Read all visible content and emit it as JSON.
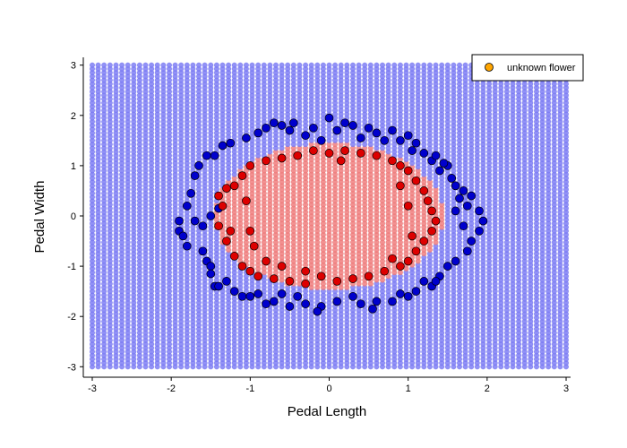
{
  "chart_data": {
    "type": "scatter",
    "xlabel": "Pedal Length",
    "ylabel": "Pedal Width",
    "xlim": [
      -3.1,
      3.15
    ],
    "ylim": [
      -3.15,
      3.1
    ],
    "x_ticks": [
      -3,
      -2,
      -1,
      0,
      1,
      2,
      3
    ],
    "y_ticks": [
      -3,
      -2,
      -1,
      0,
      1,
      2,
      3
    ],
    "grid": false,
    "legend_position": "top-right",
    "legend": [
      "unknown flower"
    ],
    "background_grid": {
      "range": [
        -3,
        3
      ],
      "step": 0.075,
      "inner_region": "ellipse",
      "inner_ellipse": {
        "cx": 0,
        "cy": 0,
        "rx": 1.45,
        "ry": 1.45
      },
      "inner_color": "#f07f7f",
      "outer_color": "#7f7ff5"
    },
    "series": [
      {
        "color": "#0000cc",
        "points": [
          [
            -1.9,
            -0.1
          ],
          [
            -1.9,
            -0.3
          ],
          [
            -1.85,
            -0.4
          ],
          [
            -1.8,
            -0.6
          ],
          [
            -1.8,
            0.2
          ],
          [
            -1.75,
            0.45
          ],
          [
            -1.7,
            0.8
          ],
          [
            -1.65,
            1.0
          ],
          [
            -1.6,
            -0.7
          ],
          [
            -1.55,
            -0.9
          ],
          [
            -1.55,
            1.2
          ],
          [
            -1.5,
            -1.0
          ],
          [
            -1.45,
            -1.4
          ],
          [
            -1.4,
            -1.4
          ],
          [
            -1.35,
            1.4
          ],
          [
            -1.3,
            -1.3
          ],
          [
            -1.2,
            -1.5
          ],
          [
            -1.1,
            -1.6
          ],
          [
            -1.05,
            1.55
          ],
          [
            -0.9,
            1.65
          ],
          [
            -0.8,
            1.75
          ],
          [
            -0.7,
            1.85
          ],
          [
            -0.6,
            1.8
          ],
          [
            -0.5,
            1.7
          ],
          [
            -0.45,
            1.85
          ],
          [
            -0.3,
            1.6
          ],
          [
            -0.2,
            1.75
          ],
          [
            -0.1,
            1.5
          ],
          [
            0.0,
            1.95
          ],
          [
            0.1,
            1.7
          ],
          [
            0.3,
            1.8
          ],
          [
            0.4,
            1.55
          ],
          [
            0.5,
            1.75
          ],
          [
            0.6,
            1.65
          ],
          [
            0.7,
            1.5
          ],
          [
            0.8,
            1.7
          ],
          [
            0.9,
            1.5
          ],
          [
            1.0,
            1.6
          ],
          [
            1.05,
            1.3
          ],
          [
            1.1,
            1.45
          ],
          [
            1.2,
            1.25
          ],
          [
            1.3,
            1.1
          ],
          [
            1.35,
            1.2
          ],
          [
            1.4,
            0.9
          ],
          [
            1.5,
            1.0
          ],
          [
            1.55,
            0.75
          ],
          [
            1.6,
            0.6
          ],
          [
            1.7,
            0.5
          ],
          [
            1.75,
            0.2
          ],
          [
            1.8,
            0.4
          ],
          [
            1.9,
            0.1
          ],
          [
            1.95,
            -0.1
          ],
          [
            1.9,
            -0.3
          ],
          [
            1.8,
            -0.5
          ],
          [
            1.75,
            -0.7
          ],
          [
            1.6,
            -0.9
          ],
          [
            1.5,
            -1.0
          ],
          [
            1.4,
            -1.2
          ],
          [
            1.3,
            -1.4
          ],
          [
            1.2,
            -1.3
          ],
          [
            1.1,
            -1.5
          ],
          [
            1.0,
            -1.6
          ],
          [
            0.9,
            -1.55
          ],
          [
            0.8,
            -1.7
          ],
          [
            0.6,
            -1.7
          ],
          [
            0.4,
            -1.75
          ],
          [
            0.3,
            -1.6
          ],
          [
            0.1,
            -1.7
          ],
          [
            -0.1,
            -1.8
          ],
          [
            -0.3,
            -1.75
          ],
          [
            -0.4,
            -1.6
          ],
          [
            -0.5,
            -1.8
          ],
          [
            -0.7,
            -1.7
          ],
          [
            -0.8,
            -1.75
          ],
          [
            -0.9,
            -1.55
          ],
          [
            -1.0,
            -1.6
          ],
          [
            -0.6,
            -1.55
          ],
          [
            -1.4,
            0.15
          ],
          [
            -1.5,
            0.0
          ],
          [
            -1.6,
            -0.2
          ],
          [
            -1.7,
            -0.1
          ],
          [
            1.6,
            0.1
          ],
          [
            1.7,
            -0.2
          ],
          [
            1.65,
            0.35
          ],
          [
            -1.45,
            1.2
          ],
          [
            -1.25,
            1.45
          ],
          [
            -1.5,
            -1.15
          ],
          [
            1.35,
            -1.3
          ],
          [
            0.2,
            1.85
          ],
          [
            -0.15,
            -1.9
          ],
          [
            0.55,
            -1.85
          ],
          [
            1.45,
            1.05
          ]
        ]
      },
      {
        "color": "#dd0000",
        "points": [
          [
            -1.4,
            0.4
          ],
          [
            -1.35,
            0.2
          ],
          [
            -1.4,
            -0.2
          ],
          [
            -1.3,
            -0.5
          ],
          [
            -1.2,
            -0.8
          ],
          [
            -1.1,
            -1.0
          ],
          [
            -1.0,
            -1.1
          ],
          [
            -0.9,
            -1.2
          ],
          [
            -0.7,
            -1.25
          ],
          [
            -0.5,
            -1.3
          ],
          [
            -0.3,
            -1.35
          ],
          [
            -0.1,
            -1.2
          ],
          [
            0.1,
            -1.3
          ],
          [
            0.3,
            -1.25
          ],
          [
            0.5,
            -1.2
          ],
          [
            0.7,
            -1.1
          ],
          [
            0.9,
            -1.0
          ],
          [
            1.0,
            -0.9
          ],
          [
            1.1,
            -0.7
          ],
          [
            1.2,
            -0.5
          ],
          [
            1.3,
            -0.3
          ],
          [
            1.35,
            -0.1
          ],
          [
            1.3,
            0.1
          ],
          [
            1.25,
            0.3
          ],
          [
            1.2,
            0.5
          ],
          [
            1.1,
            0.7
          ],
          [
            1.0,
            0.9
          ],
          [
            0.9,
            1.0
          ],
          [
            0.8,
            1.1
          ],
          [
            0.6,
            1.2
          ],
          [
            0.4,
            1.25
          ],
          [
            0.2,
            1.3
          ],
          [
            0.0,
            1.25
          ],
          [
            -0.2,
            1.3
          ],
          [
            -0.4,
            1.2
          ],
          [
            -0.6,
            1.15
          ],
          [
            -0.8,
            1.1
          ],
          [
            -1.0,
            1.0
          ],
          [
            -1.1,
            0.8
          ],
          [
            -1.2,
            0.6
          ],
          [
            -1.05,
            0.3
          ],
          [
            -1.0,
            -0.3
          ],
          [
            -0.95,
            -0.6
          ],
          [
            -0.8,
            -0.9
          ],
          [
            -0.6,
            -1.0
          ],
          [
            1.05,
            -0.4
          ],
          [
            1.0,
            0.2
          ],
          [
            0.9,
            0.6
          ],
          [
            -1.25,
            -0.3
          ],
          [
            -1.3,
            0.55
          ],
          [
            0.8,
            -0.85
          ],
          [
            0.15,
            1.1
          ],
          [
            -0.3,
            -1.1
          ]
        ]
      },
      {
        "name": "unknown flower",
        "color": "#ffa500",
        "points": []
      }
    ]
  }
}
